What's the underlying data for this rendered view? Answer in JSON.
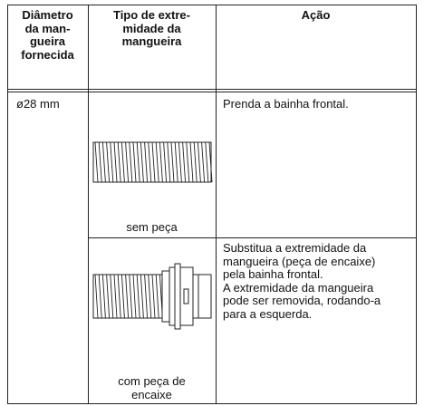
{
  "table": {
    "header": [
      [
        "Diâmetro",
        "da man-",
        "gueira",
        "fornecida"
      ],
      [
        "Tipo de extre-",
        "midade da",
        "mangueira"
      ],
      [
        "Ação"
      ]
    ],
    "rows": [
      {
        "diameter": "ø28 mm",
        "type": [
          "sem peça"
        ],
        "action": [
          "Prenda a bainha frontal."
        ]
      },
      {
        "type": [
          "com peça de",
          "encaixe"
        ],
        "action": [
          "Substitua a extremidade da",
          "mangueira (peça de encaixe)",
          "pela bainha frontal.",
          "A extremidade da mangueira",
          "pode ser removida, rodando-a",
          "para a esquerda."
        ]
      }
    ]
  }
}
